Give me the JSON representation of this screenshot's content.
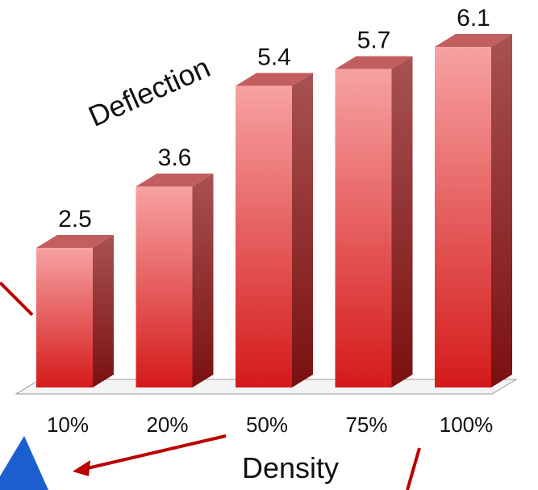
{
  "chart_data": {
    "type": "bar3d",
    "title": "Deflection",
    "x_label": "Density",
    "categories": [
      "10%",
      "20%",
      "50%",
      "75%",
      "100%"
    ],
    "values": [
      2.5,
      3.6,
      5.4,
      5.7,
      6.1
    ],
    "color": "#e0393b"
  }
}
